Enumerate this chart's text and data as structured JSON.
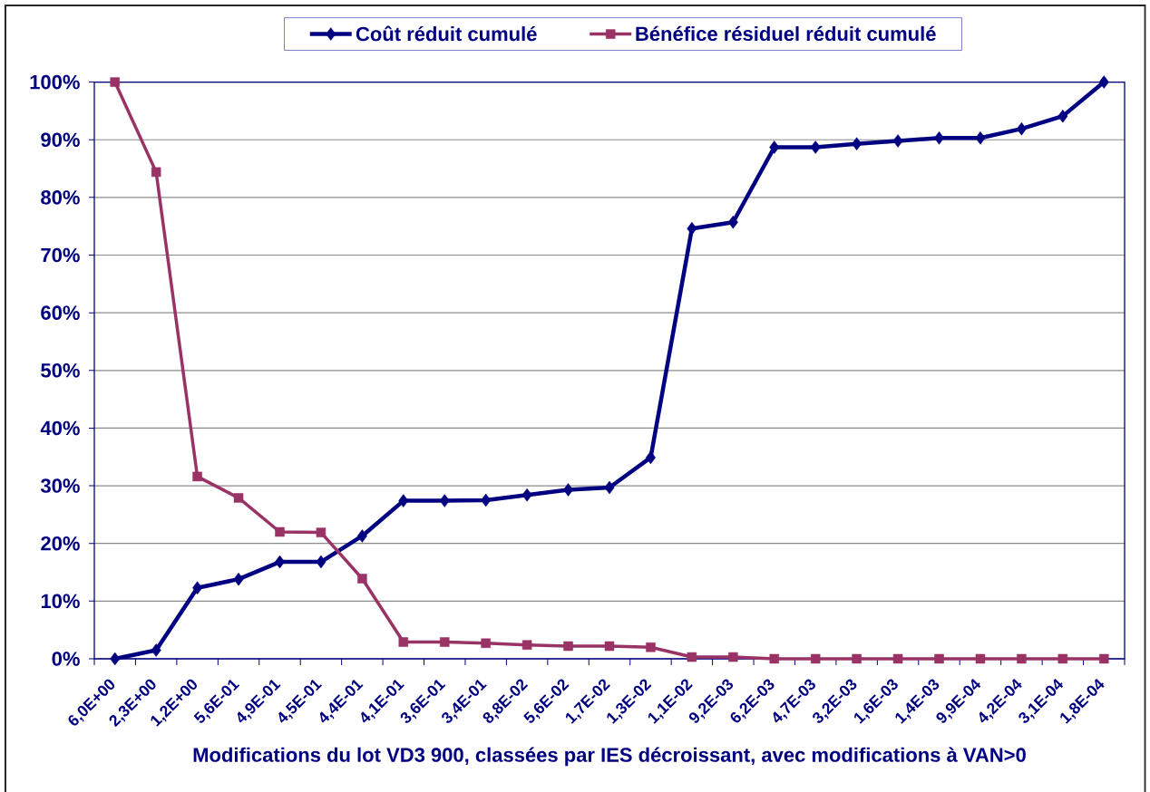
{
  "chart_data": {
    "type": "line",
    "xlabel": "Modifications du lot VD3 900, classées par IES décroissant, avec modifications à VAN>0",
    "categories": [
      "6,0E+00",
      "2,3E+00",
      "1,2E+00",
      "5,6E-01",
      "4,9E-01",
      "4,5E-01",
      "4,4E-01",
      "4,1E-01",
      "3,6E-01",
      "3,4E-01",
      "8,8E-02",
      "5,6E-02",
      "1,7E-02",
      "1,3E-02",
      "1,1E-02",
      "9,2E-03",
      "6,2E-03",
      "4,7E-03",
      "3,2E-03",
      "1,6E-03",
      "1,4E-03",
      "9,9E-04",
      "4,2E-04",
      "3,1E-04",
      "1,8E-04"
    ],
    "series": [
      {
        "name": "Coût réduit cumulé",
        "color": "#000080",
        "marker": "diamond",
        "values": [
          0,
          1.5,
          12.3,
          13.8,
          16.8,
          16.8,
          21.3,
          27.4,
          27.4,
          27.5,
          28.4,
          29.3,
          29.7,
          34.9,
          74.6,
          75.7,
          88.7,
          88.7,
          89.3,
          89.8,
          90.3,
          90.3,
          91.9,
          94.1,
          100
        ]
      },
      {
        "name": "Bénéfice résiduel réduit cumulé",
        "color": "#993366",
        "marker": "square",
        "values": [
          100,
          84.4,
          31.6,
          27.9,
          22.0,
          21.9,
          13.9,
          2.9,
          2.9,
          2.7,
          2.4,
          2.2,
          2.2,
          2.0,
          0.3,
          0.3,
          0,
          0,
          0,
          0,
          0,
          0,
          0,
          0,
          0
        ]
      }
    ],
    "ylim": [
      0,
      100
    ],
    "yticks": [
      {
        "value": 0,
        "label": "0%"
      },
      {
        "value": 10,
        "label": "10%"
      },
      {
        "value": 20,
        "label": "20%"
      },
      {
        "value": 30,
        "label": "30%"
      },
      {
        "value": 40,
        "label": "40%"
      },
      {
        "value": 50,
        "label": "50%"
      },
      {
        "value": 60,
        "label": "60%"
      },
      {
        "value": 70,
        "label": "70%"
      },
      {
        "value": 80,
        "label": "80%"
      },
      {
        "value": 90,
        "label": "90%"
      },
      {
        "value": 100,
        "label": "100%"
      }
    ],
    "grid": "y",
    "legend": "top"
  }
}
